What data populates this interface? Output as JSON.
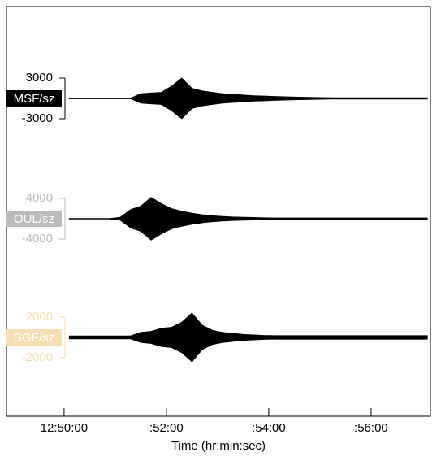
{
  "chart_data": {
    "type": "seismogram",
    "xlabel": "Time (hr:min:sec)",
    "xlim": [
      -1.125,
      7.16
    ],
    "xticks": [
      {
        "value": 0,
        "label": "12:50:00"
      },
      {
        "value": 2,
        "label": ":52:00"
      },
      {
        "value": 4,
        "label": ":54:00"
      },
      {
        "value": 6,
        "label": ":56:00"
      }
    ],
    "x": [
      0.1,
      0.3,
      0.5,
      0.7,
      0.9,
      1.1,
      1.3,
      1.5,
      1.7,
      1.9,
      2.1,
      2.3,
      2.5,
      2.7,
      2.9,
      3.1,
      3.3,
      3.5,
      3.7,
      3.9,
      4.1,
      4.3,
      4.5,
      4.7,
      4.9,
      5.1,
      5.3,
      5.5,
      5.7,
      5.9,
      6.1,
      6.3,
      6.5,
      6.7,
      6.9,
      7.1
    ],
    "series": [
      {
        "name": "MSF/sz",
        "color": "#000000",
        "ylim": [
          -3000,
          3000
        ],
        "yticks": [
          3000,
          -3000
        ],
        "values": [
          50,
          50,
          50,
          50,
          50,
          50,
          50,
          700,
          800,
          900,
          1800,
          3000,
          1500,
          1100,
          900,
          700,
          600,
          500,
          400,
          350,
          300,
          250,
          200,
          180,
          150,
          120,
          100,
          100,
          100,
          100,
          100,
          100,
          100,
          100,
          100,
          100
        ]
      },
      {
        "name": "OUL/sz",
        "color": "#bbbbbb",
        "ylim": [
          -4000,
          4000
        ],
        "yticks": [
          4000,
          -4000
        ],
        "values": [
          50,
          50,
          50,
          50,
          50,
          300,
          1800,
          2500,
          4200,
          3000,
          2000,
          1500,
          1100,
          800,
          600,
          450,
          350,
          300,
          250,
          200,
          150,
          150,
          150,
          150,
          150,
          150,
          150,
          150,
          150,
          150,
          150,
          150,
          150,
          150,
          150,
          150
        ]
      },
      {
        "name": "SGF/sz",
        "color": "#f5deb3",
        "ylim": [
          -2000,
          2000
        ],
        "yticks": [
          2000,
          -2000
        ],
        "values": [
          150,
          150,
          150,
          150,
          150,
          150,
          150,
          500,
          600,
          900,
          1000,
          1500,
          2400,
          1200,
          700,
          500,
          400,
          300,
          250,
          200,
          180,
          180,
          180,
          180,
          180,
          180,
          180,
          180,
          180,
          180,
          180,
          180,
          180,
          180,
          180,
          180
        ]
      }
    ]
  }
}
